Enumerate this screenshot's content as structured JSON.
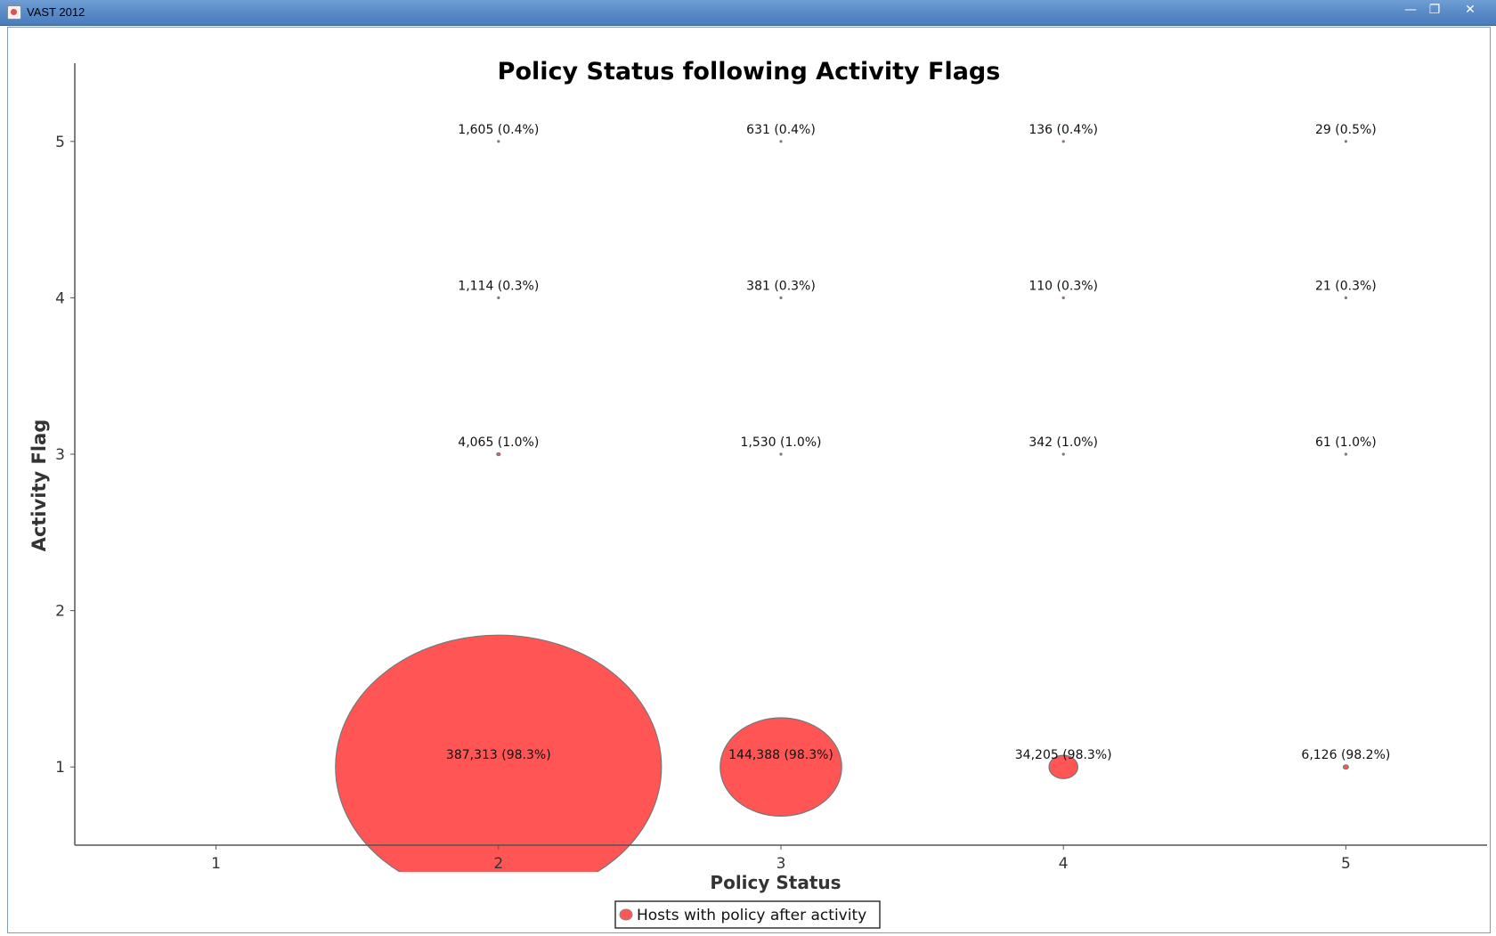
{
  "window": {
    "title": "VAST 2012",
    "minimize": "—",
    "maximize": "❐",
    "close": "✕"
  },
  "chart_data": {
    "type": "scatter",
    "title": "Policy Status following Activity Flags",
    "xlabel": "Policy Status",
    "ylabel": "Activity Flag",
    "xlim": [
      0.5,
      5.5
    ],
    "ylim": [
      0.5,
      5.5
    ],
    "xticks": [
      "1",
      "2",
      "3",
      "4",
      "5"
    ],
    "yticks": [
      "1",
      "2",
      "3",
      "4",
      "5"
    ],
    "grid": false,
    "legend_position": "bottom-center",
    "series": [
      {
        "name": "Hosts with policy after activity",
        "color": "#ff5555",
        "points": [
          {
            "x": 2,
            "y": 1,
            "value": 387313,
            "label": "387,313 (98.3%)"
          },
          {
            "x": 3,
            "y": 1,
            "value": 144388,
            "label": "144,388 (98.3%)"
          },
          {
            "x": 4,
            "y": 1,
            "value": 34205,
            "label": "34,205 (98.3%)"
          },
          {
            "x": 5,
            "y": 1,
            "value": 6126,
            "label": "6,126 (98.2%)"
          },
          {
            "x": 2,
            "y": 3,
            "value": 4065,
            "label": "4,065 (1.0%)"
          },
          {
            "x": 3,
            "y": 3,
            "value": 1530,
            "label": "1,530 (1.0%)"
          },
          {
            "x": 4,
            "y": 3,
            "value": 342,
            "label": "342 (1.0%)"
          },
          {
            "x": 5,
            "y": 3,
            "value": 61,
            "label": "61 (1.0%)"
          },
          {
            "x": 2,
            "y": 4,
            "value": 1114,
            "label": "1,114 (0.3%)"
          },
          {
            "x": 3,
            "y": 4,
            "value": 381,
            "label": "381 (0.3%)"
          },
          {
            "x": 4,
            "y": 4,
            "value": 110,
            "label": "110 (0.3%)"
          },
          {
            "x": 5,
            "y": 4,
            "value": 21,
            "label": "21 (0.3%)"
          },
          {
            "x": 2,
            "y": 5,
            "value": 1605,
            "label": "1,605 (0.4%)"
          },
          {
            "x": 3,
            "y": 5,
            "value": 631,
            "label": "631 (0.4%)"
          },
          {
            "x": 4,
            "y": 5,
            "value": 136,
            "label": "136 (0.4%)"
          },
          {
            "x": 5,
            "y": 5,
            "value": 29,
            "label": "29 (0.5%)"
          }
        ]
      }
    ]
  }
}
